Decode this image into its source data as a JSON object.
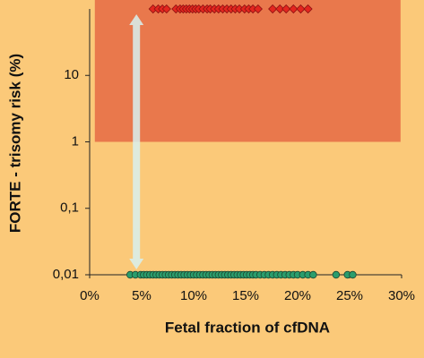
{
  "chart_data": {
    "type": "scatter",
    "xlabel": "Fetal fraction of cfDNA",
    "ylabel": "FORTE - trisomy risk (%)",
    "log_y": true,
    "xlim": [
      0,
      30
    ],
    "ylim": [
      0.01,
      100
    ],
    "xticks": [
      {
        "value": 0,
        "label": "0%"
      },
      {
        "value": 5,
        "label": "5%"
      },
      {
        "value": 10,
        "label": "10%"
      },
      {
        "value": 15,
        "label": "15%"
      },
      {
        "value": 20,
        "label": "20%"
      },
      {
        "value": 25,
        "label": "25%"
      },
      {
        "value": 30,
        "label": "30%"
      }
    ],
    "yticks": [
      {
        "value": 0.01,
        "label": "0,01"
      },
      {
        "value": 0.1,
        "label": "0,1"
      },
      {
        "value": 1,
        "label": "1"
      },
      {
        "value": 10,
        "label": "10"
      }
    ],
    "shaded_region": {
      "ymin": 1,
      "xlim": [
        0.5,
        29.9
      ],
      "color": "#e8744a"
    },
    "arrow": {
      "x": 4.5,
      "y": [
        0.01,
        100
      ],
      "color": "#d8f1f0"
    },
    "series": [
      {
        "color": "#e3261f",
        "marker": "diamond",
        "x": [
          6.1,
          6.6,
          7.0,
          7.4,
          8.3,
          8.7,
          9.0,
          9.3,
          9.6,
          9.9,
          10.2,
          10.5,
          10.9,
          11.3,
          11.6,
          12.0,
          12.4,
          12.8,
          13.2,
          13.6,
          14.0,
          14.4,
          14.9,
          15.3,
          15.7,
          16.2,
          17.6,
          18.3,
          18.9,
          19.6,
          20.3,
          21.0
        ],
        "values": [
          100,
          100,
          100,
          100,
          100,
          100,
          100,
          100,
          100,
          100,
          100,
          100,
          100,
          100,
          100,
          100,
          100,
          100,
          100,
          100,
          100,
          100,
          100,
          100,
          100,
          100,
          100,
          100,
          100,
          100,
          100,
          100
        ]
      },
      {
        "color": "#2a9d6c",
        "marker": "circle",
        "x": [
          3.9,
          4.4,
          4.9,
          5.2,
          5.5,
          5.8,
          6.1,
          6.4,
          6.7,
          7.0,
          7.3,
          7.6,
          7.9,
          8.2,
          8.5,
          8.8,
          9.1,
          9.4,
          9.7,
          10.0,
          10.3,
          10.6,
          10.9,
          11.2,
          11.5,
          11.8,
          12.1,
          12.4,
          12.7,
          13.0,
          13.3,
          13.6,
          13.9,
          14.2,
          14.5,
          14.8,
          15.1,
          15.4,
          15.7,
          16.0,
          16.4,
          16.8,
          17.2,
          17.6,
          18.0,
          18.4,
          18.8,
          19.2,
          19.6,
          20.0,
          20.5,
          21.0,
          21.5,
          23.7,
          24.8,
          25.3
        ],
        "values": [
          0.01,
          0.01,
          0.01,
          0.01,
          0.01,
          0.01,
          0.01,
          0.01,
          0.01,
          0.01,
          0.01,
          0.01,
          0.01,
          0.01,
          0.01,
          0.01,
          0.01,
          0.01,
          0.01,
          0.01,
          0.01,
          0.01,
          0.01,
          0.01,
          0.01,
          0.01,
          0.01,
          0.01,
          0.01,
          0.01,
          0.01,
          0.01,
          0.01,
          0.01,
          0.01,
          0.01,
          0.01,
          0.01,
          0.01,
          0.01,
          0.01,
          0.01,
          0.01,
          0.01,
          0.01,
          0.01,
          0.01,
          0.01,
          0.01,
          0.01,
          0.01,
          0.01,
          0.01,
          0.01,
          0.01,
          0.01
        ]
      }
    ]
  }
}
